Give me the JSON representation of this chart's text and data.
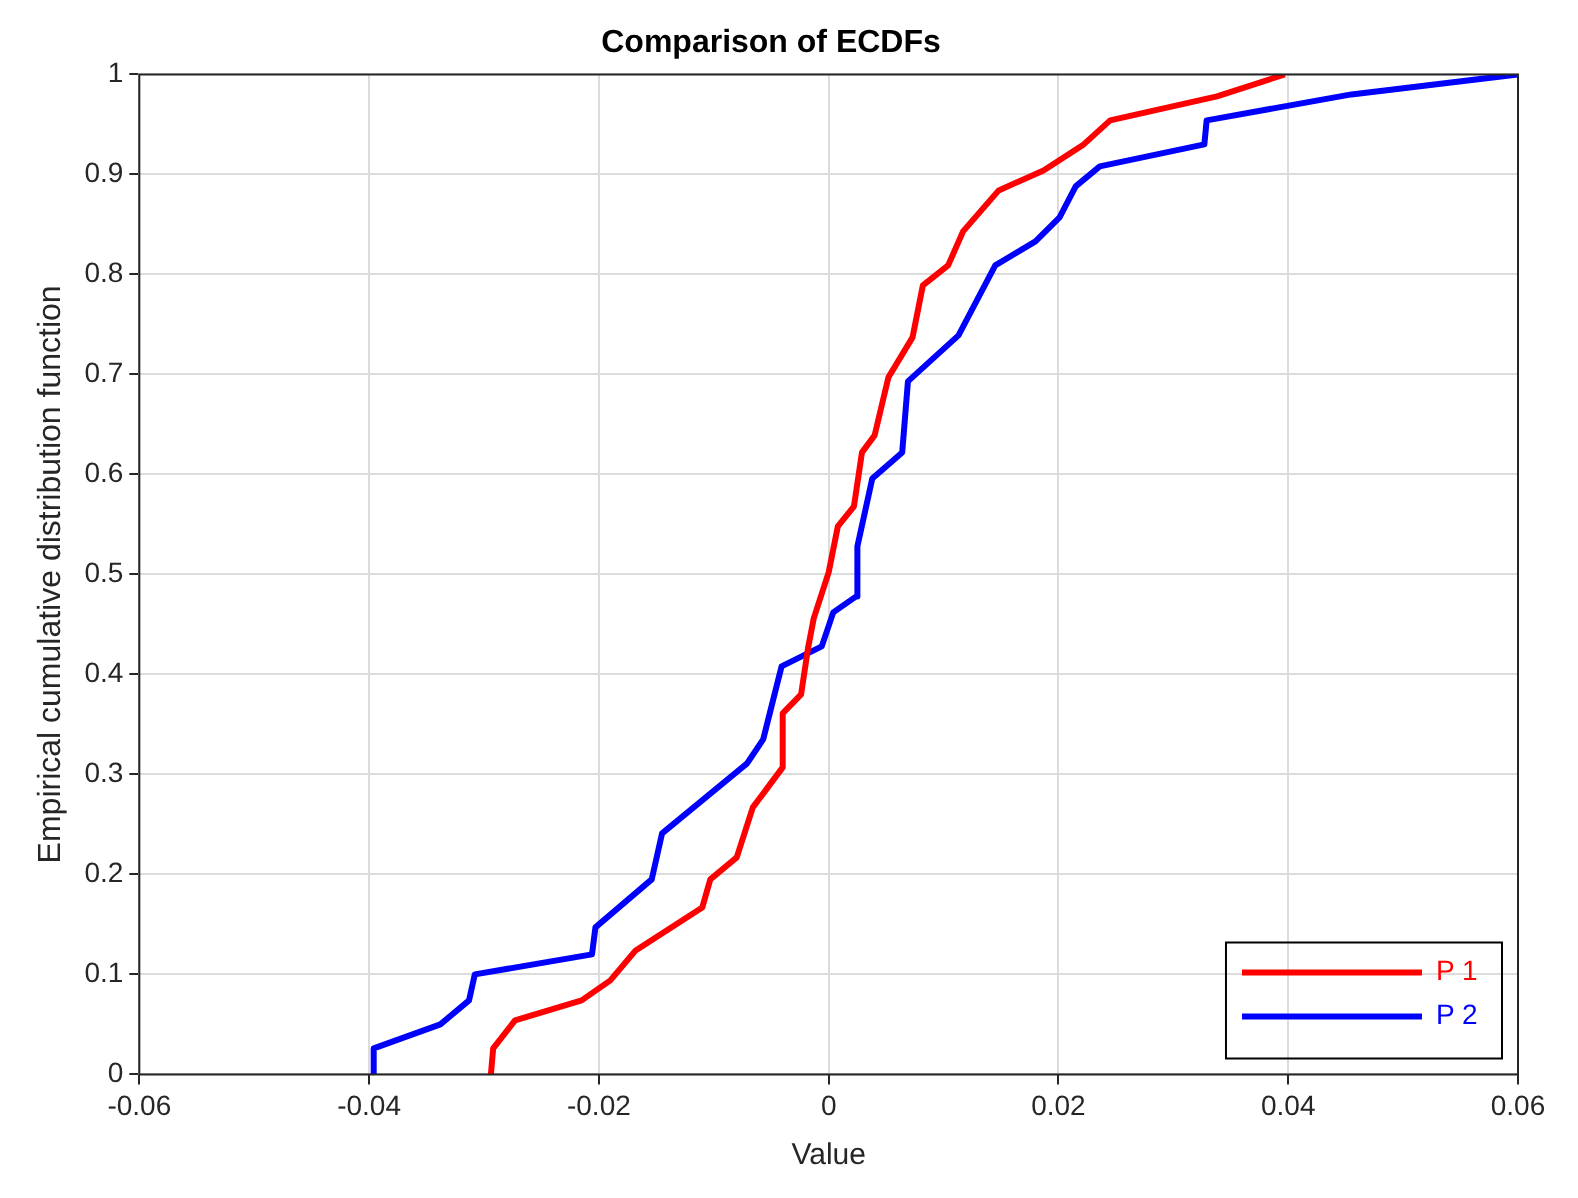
{
  "chart_data": {
    "type": "line",
    "title": "Comparison of ECDFs",
    "xlabel": "Value",
    "ylabel": "Empirical cumulative distribution function",
    "xlim": [
      -0.06,
      0.06
    ],
    "xticks": [
      -0.06,
      -0.04,
      -0.02,
      0,
      0.02,
      0.04,
      0.06
    ],
    "ylim": [
      0,
      1
    ],
    "yticks": [
      0,
      0.1,
      0.2,
      0.3,
      0.4,
      0.5,
      0.6,
      0.7,
      0.8,
      0.9,
      1
    ],
    "grid": true,
    "legend": "bottom right",
    "marker": "none",
    "line_style": "solid",
    "series": [
      {
        "name": "P 1",
        "color": "#ff0000",
        "x": [
          -0.0294,
          -0.0292,
          -0.0273,
          -0.0215,
          -0.019,
          -0.0168,
          -0.011,
          -0.0103,
          -0.008,
          -0.0066,
          -0.004,
          -0.004,
          -0.0024,
          -0.0018,
          -0.0013,
          0,
          0.0008,
          0.0022,
          0.0029,
          0.004,
          0.0052,
          0.0073,
          0.0082,
          0.0104,
          0.0117,
          0.0148,
          0.0187,
          0.0222,
          0.0245,
          0.0338,
          0.0397
        ],
        "values": [
          0,
          0.026,
          0.054,
          0.074,
          0.094,
          0.124,
          0.167,
          0.195,
          0.217,
          0.267,
          0.307,
          0.361,
          0.38,
          0.426,
          0.456,
          0.502,
          0.548,
          0.568,
          0.622,
          0.639,
          0.697,
          0.737,
          0.789,
          0.809,
          0.843,
          0.884,
          0.904,
          0.93,
          0.954,
          0.978,
          1
        ]
      },
      {
        "name": "P 2",
        "color": "#0000ff",
        "x": [
          -0.0397,
          -0.0396,
          -0.0338,
          -0.0313,
          -0.0308,
          -0.0206,
          -0.0203,
          -0.0154,
          -0.0145,
          -0.0071,
          -0.0057,
          -0.0041,
          -0.0006,
          0.0004,
          0.0024,
          0.0025,
          0.0038,
          0.0064,
          0.0069,
          0.0113,
          0.0145,
          0.018,
          0.0201,
          0.0215,
          0.0236,
          0.0327,
          0.0329,
          0.0455,
          0.06
        ],
        "values": [
          0,
          0.026,
          0.05,
          0.074,
          0.1,
          0.12,
          0.147,
          0.195,
          0.241,
          0.311,
          0.335,
          0.408,
          0.428,
          0.462,
          0.478,
          0.528,
          0.596,
          0.622,
          0.693,
          0.739,
          0.809,
          0.833,
          0.857,
          0.888,
          0.908,
          0.93,
          0.954,
          0.98,
          1
        ]
      }
    ]
  }
}
